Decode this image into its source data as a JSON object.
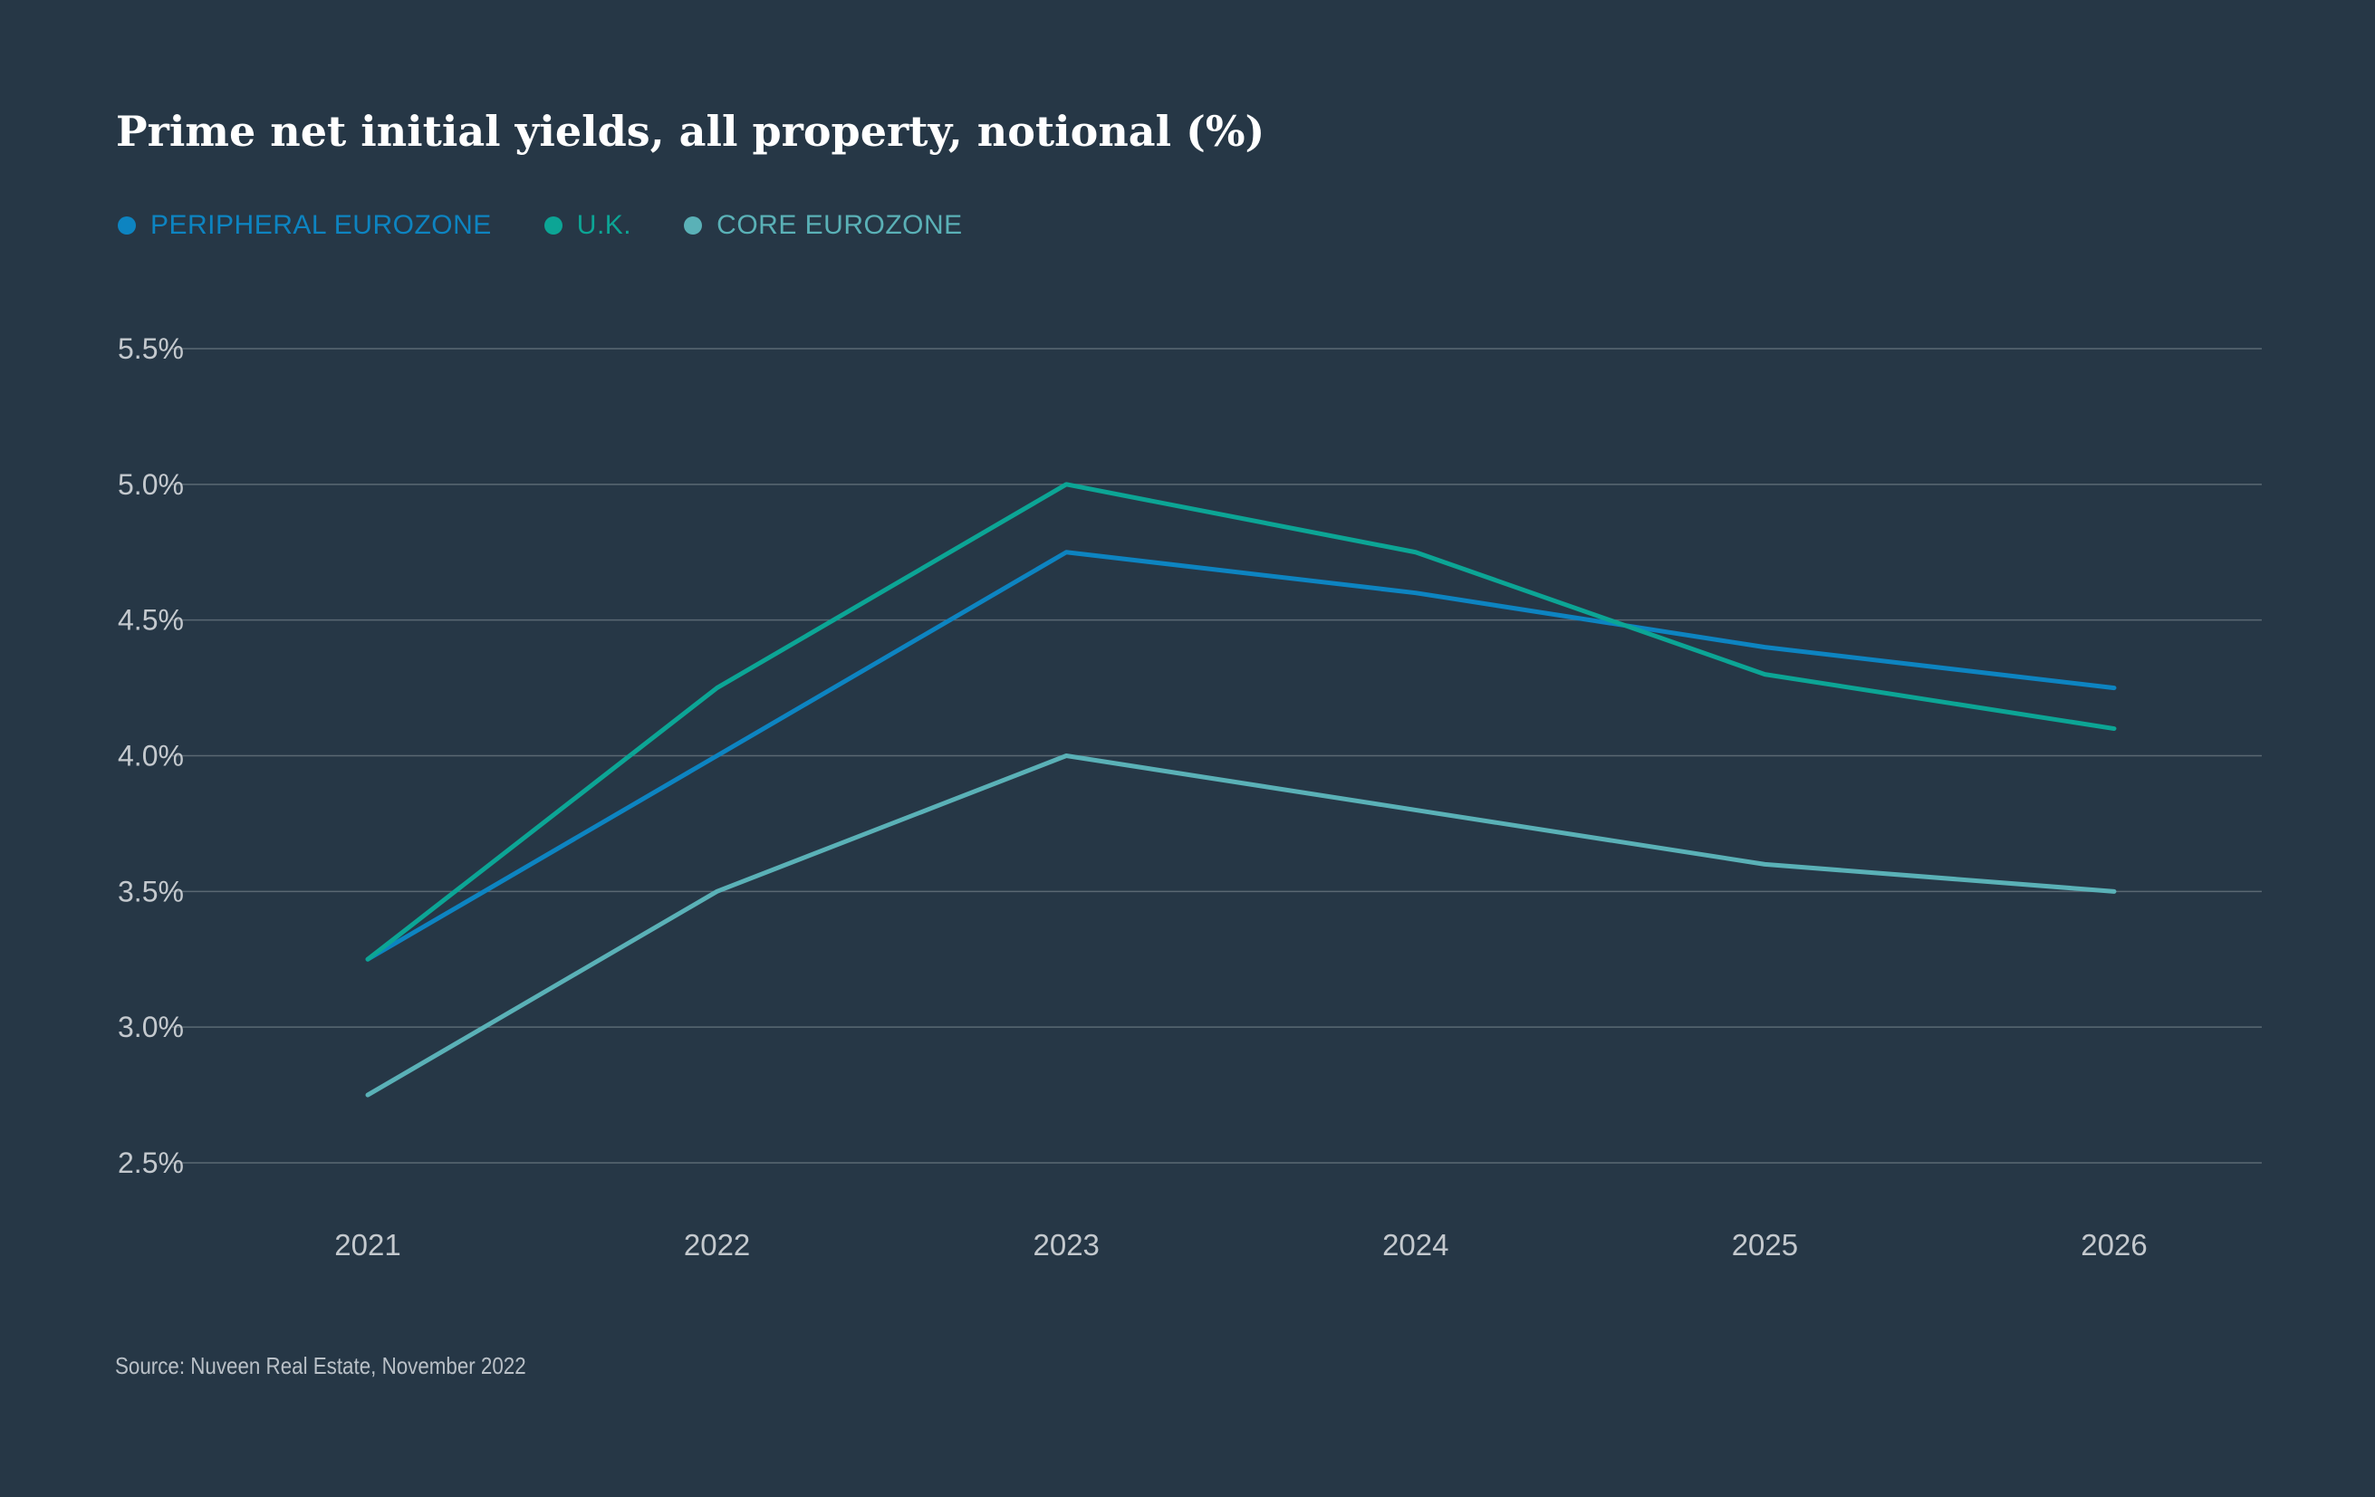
{
  "chart_data": {
    "type": "line",
    "title": "Prime net initial yields, all property, notional (%)",
    "categories": [
      "2021",
      "2022",
      "2023",
      "2024",
      "2025",
      "2026"
    ],
    "y_ticks": [
      {
        "value": 2.5,
        "label": "2.5%"
      },
      {
        "value": 3.0,
        "label": "3.0%"
      },
      {
        "value": 3.5,
        "label": "3.5%"
      },
      {
        "value": 4.0,
        "label": "4.0%"
      },
      {
        "value": 4.5,
        "label": "4.5%"
      },
      {
        "value": 5.0,
        "label": "5.0%"
      },
      {
        "value": 5.5,
        "label": "5.5%"
      }
    ],
    "ylim": [
      2.5,
      5.5
    ],
    "xlabel": "",
    "ylabel": "",
    "grid": true,
    "legend_position": "top-left",
    "series": [
      {
        "name": "PERIPHERAL EUROZONE",
        "color": "#0d84c1",
        "values": [
          3.25,
          4.0,
          4.75,
          4.6,
          4.4,
          4.25
        ]
      },
      {
        "name": "U.K.",
        "color": "#0ca595",
        "values": [
          3.25,
          4.25,
          5.0,
          4.75,
          4.3,
          4.1
        ]
      },
      {
        "name": "CORE EUROZONE",
        "color": "#5ab1b7",
        "values": [
          2.75,
          3.5,
          4.0,
          3.8,
          3.6,
          3.5
        ]
      }
    ]
  },
  "source": "Source: Nuveen Real Estate, November 2022",
  "colors": {
    "background": "#263746",
    "grid": "#5a6873",
    "tick_label": "#c4c9ce"
  }
}
